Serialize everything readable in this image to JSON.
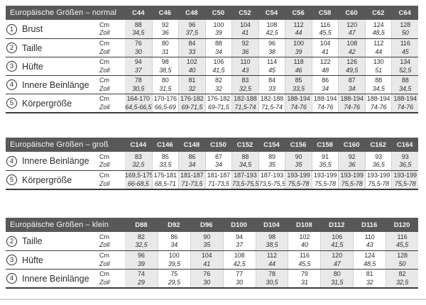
{
  "colors": {
    "header_bg": "#58585a",
    "header_text": "#f5f5f5",
    "shade": "#e9e9e9",
    "row_border": "#3b3b3d",
    "col_border": "#d2d2d2",
    "text_dark": "#2d2d2f",
    "bottom_rule": "#d9d9d9"
  },
  "units": {
    "cm": "Cm",
    "zoll": "Zoll"
  },
  "tables": [
    {
      "title": "Europäische Größen – normal",
      "columns": [
        "C44",
        "C46",
        "C48",
        "C50",
        "C52",
        "C54",
        "C56",
        "C58",
        "C60",
        "C62",
        "C64"
      ],
      "rows": [
        {
          "num": "1",
          "label": "Brust",
          "cm": [
            "88",
            "92",
            "96",
            "100",
            "104",
            "108",
            "112",
            "116",
            "120",
            "124",
            "128"
          ],
          "zoll": [
            "34,5",
            "36",
            "37,5",
            "39",
            "41",
            "42,5",
            "44",
            "45,5",
            "47",
            "48,5",
            "50"
          ]
        },
        {
          "num": "2",
          "label": "Taille",
          "cm": [
            "76",
            "80",
            "84",
            "88",
            "92",
            "96",
            "100",
            "104",
            "108",
            "112",
            "116"
          ],
          "zoll": [
            "30",
            "31",
            "33",
            "34",
            "36",
            "38",
            "39",
            "41",
            "42",
            "44",
            "45"
          ]
        },
        {
          "num": "3",
          "label": "Hüfte",
          "cm": [
            "94",
            "98",
            "102",
            "106",
            "110",
            "114",
            "118",
            "122",
            "126",
            "130",
            "134"
          ],
          "zoll": [
            "37",
            "38,5",
            "40",
            "41,5",
            "43",
            "45",
            "46",
            "48",
            "49,5",
            "51",
            "52,5"
          ]
        },
        {
          "num": "4",
          "label": "Innere Beinlänge",
          "cm": [
            "78",
            "80",
            "81",
            "82",
            "83",
            "84",
            "85",
            "86",
            "87",
            "88",
            "88"
          ],
          "zoll": [
            "30,5",
            "31,5",
            "32",
            "32",
            "32,5",
            "33",
            "33,5",
            "34",
            "34",
            "34,5",
            "34,5"
          ]
        },
        {
          "num": "5",
          "label": "Körpergröße",
          "cm": [
            "164-170",
            "170-176",
            "176-182",
            "176-182",
            "182-188",
            "182-188",
            "188-194",
            "188-194",
            "188-194",
            "188-194",
            "188-194"
          ],
          "zoll": [
            "64,5-66,5",
            "66,5-69",
            "69-71,5",
            "69-71,5",
            "71,5-74",
            "71,5-74",
            "74-76",
            "74-76",
            "74-76",
            "74-76",
            "74-76"
          ]
        }
      ]
    },
    {
      "title": "Europäische Größen – groß",
      "columns": [
        "C144",
        "C146",
        "C148",
        "C150",
        "C152",
        "C154",
        "C156",
        "C158",
        "C160",
        "C162",
        "C164"
      ],
      "rows": [
        {
          "num": "4",
          "label": "Innere Beinlänge",
          "cm": [
            "83",
            "85",
            "86",
            "87",
            "88",
            "89",
            "90",
            "91",
            "92",
            "93",
            "93"
          ],
          "zoll": [
            "32,5",
            "33,5",
            "34",
            "34",
            "34,5",
            "35",
            "35",
            "35,5",
            "36",
            "36,5",
            "36,5"
          ]
        },
        {
          "num": "5",
          "label": "Körpergröße",
          "cm": [
            "169,5-175",
            "175-181",
            "181-187",
            "181-187",
            "187-193",
            "187-193",
            "193-199",
            "193-199",
            "193-199",
            "193-199",
            "193-199"
          ],
          "zoll": [
            "66-68,5",
            "68,5-71",
            "71-73,5",
            "71-73,5",
            "73,5-75,5",
            "73,5-75,5",
            "75,5-78",
            "75,5-78",
            "75,5-78",
            "75,5-78",
            "75,5-78"
          ]
        }
      ]
    },
    {
      "title": "Europäische Größen – klein",
      "columns": [
        "D88",
        "D92",
        "D96",
        "D100",
        "D104",
        "D108",
        "D112",
        "D116",
        "D120"
      ],
      "rows": [
        {
          "num": "2",
          "label": "Taille",
          "cm": [
            "82",
            "86",
            "90",
            "94",
            "98",
            "102",
            "106",
            "110",
            "116"
          ],
          "zoll": [
            "32,5",
            "34",
            "35",
            "37",
            "38,5",
            "40",
            "41,5",
            "43",
            "45,5"
          ]
        },
        {
          "num": "3",
          "label": "Hüfte",
          "cm": [
            "96",
            "100",
            "104",
            "108",
            "112",
            "116",
            "120",
            "124",
            "128"
          ],
          "zoll": [
            "39",
            "39,5",
            "41",
            "42,5",
            "44",
            "45,5",
            "47",
            "48,5",
            "50"
          ]
        },
        {
          "num": "4",
          "label": "Innere Beinlänge",
          "cm": [
            "74",
            "75",
            "76",
            "77",
            "78",
            "79",
            "80",
            "81",
            "82"
          ],
          "zoll": [
            "29",
            "29,5",
            "30",
            "30",
            "30,5",
            "31",
            "31,5",
            "32",
            "32,5"
          ]
        }
      ]
    }
  ]
}
